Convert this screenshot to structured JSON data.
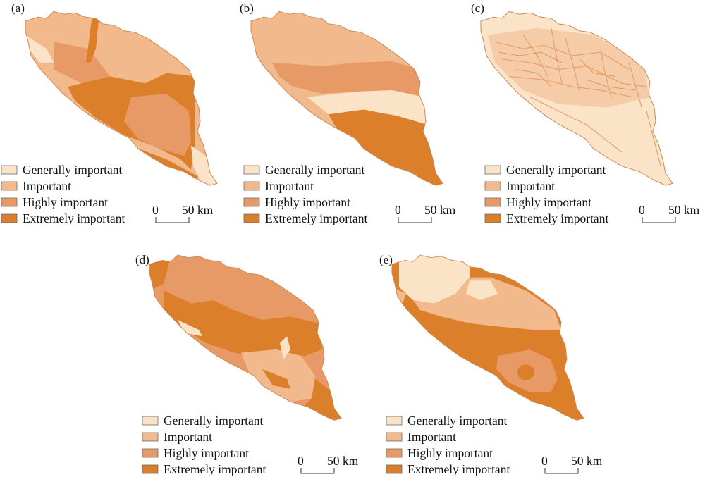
{
  "colors": {
    "generally_important": "#fbe3c8",
    "important": "#f1b98c",
    "highly_important": "#e89a66",
    "extremely_important": "#db7f2a",
    "edge": "#c98a55"
  },
  "legend": [
    {
      "key": "generally_important",
      "label": "Generally important"
    },
    {
      "key": "important",
      "label": "Important"
    },
    {
      "key": "highly_important",
      "label": "Highly important"
    },
    {
      "key": "extremely_important",
      "label": "Extremely important"
    }
  ],
  "scale": {
    "start_label": "0",
    "end_label": "50 km"
  },
  "panels": [
    {
      "label": "(a)"
    },
    {
      "label": "(b)"
    },
    {
      "label": "(c)"
    },
    {
      "label": "(d)"
    },
    {
      "label": "(e)"
    }
  ]
}
